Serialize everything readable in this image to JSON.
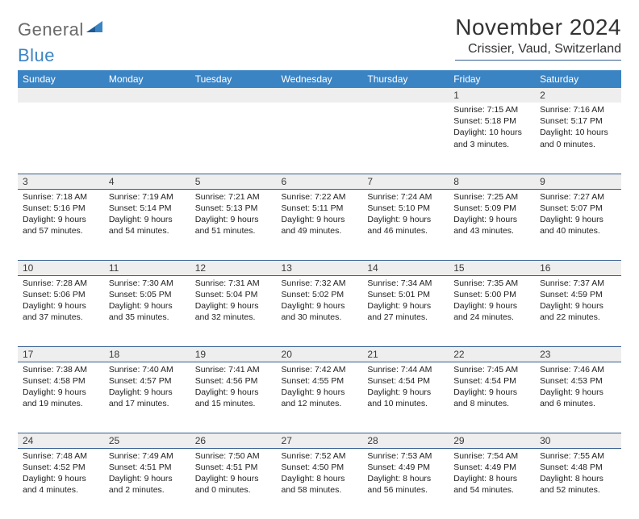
{
  "brand": {
    "part1": "General",
    "part2": "Blue"
  },
  "title": "November 2024",
  "location": "Crissier, Vaud, Switzerland",
  "colors": {
    "header_bg": "#3b84c4",
    "rule": "#365f91",
    "daynum_bg": "#eeeeee",
    "text": "#222222",
    "logo_gray": "#6a6a6a",
    "logo_blue": "#3b84c4"
  },
  "typography": {
    "title_fontsize": 28,
    "location_fontsize": 16,
    "weekday_fontsize": 12,
    "daynum_fontsize": 12,
    "body_fontsize": 10.5
  },
  "weekdays": [
    "Sunday",
    "Monday",
    "Tuesday",
    "Wednesday",
    "Thursday",
    "Friday",
    "Saturday"
  ],
  "weeks": [
    [
      null,
      null,
      null,
      null,
      null,
      {
        "n": "1",
        "sunrise": "7:15 AM",
        "sunset": "5:18 PM",
        "daylight": "10 hours and 3 minutes."
      },
      {
        "n": "2",
        "sunrise": "7:16 AM",
        "sunset": "5:17 PM",
        "daylight": "10 hours and 0 minutes."
      }
    ],
    [
      {
        "n": "3",
        "sunrise": "7:18 AM",
        "sunset": "5:16 PM",
        "daylight": "9 hours and 57 minutes."
      },
      {
        "n": "4",
        "sunrise": "7:19 AM",
        "sunset": "5:14 PM",
        "daylight": "9 hours and 54 minutes."
      },
      {
        "n": "5",
        "sunrise": "7:21 AM",
        "sunset": "5:13 PM",
        "daylight": "9 hours and 51 minutes."
      },
      {
        "n": "6",
        "sunrise": "7:22 AM",
        "sunset": "5:11 PM",
        "daylight": "9 hours and 49 minutes."
      },
      {
        "n": "7",
        "sunrise": "7:24 AM",
        "sunset": "5:10 PM",
        "daylight": "9 hours and 46 minutes."
      },
      {
        "n": "8",
        "sunrise": "7:25 AM",
        "sunset": "5:09 PM",
        "daylight": "9 hours and 43 minutes."
      },
      {
        "n": "9",
        "sunrise": "7:27 AM",
        "sunset": "5:07 PM",
        "daylight": "9 hours and 40 minutes."
      }
    ],
    [
      {
        "n": "10",
        "sunrise": "7:28 AM",
        "sunset": "5:06 PM",
        "daylight": "9 hours and 37 minutes."
      },
      {
        "n": "11",
        "sunrise": "7:30 AM",
        "sunset": "5:05 PM",
        "daylight": "9 hours and 35 minutes."
      },
      {
        "n": "12",
        "sunrise": "7:31 AM",
        "sunset": "5:04 PM",
        "daylight": "9 hours and 32 minutes."
      },
      {
        "n": "13",
        "sunrise": "7:32 AM",
        "sunset": "5:02 PM",
        "daylight": "9 hours and 30 minutes."
      },
      {
        "n": "14",
        "sunrise": "7:34 AM",
        "sunset": "5:01 PM",
        "daylight": "9 hours and 27 minutes."
      },
      {
        "n": "15",
        "sunrise": "7:35 AM",
        "sunset": "5:00 PM",
        "daylight": "9 hours and 24 minutes."
      },
      {
        "n": "16",
        "sunrise": "7:37 AM",
        "sunset": "4:59 PM",
        "daylight": "9 hours and 22 minutes."
      }
    ],
    [
      {
        "n": "17",
        "sunrise": "7:38 AM",
        "sunset": "4:58 PM",
        "daylight": "9 hours and 19 minutes."
      },
      {
        "n": "18",
        "sunrise": "7:40 AM",
        "sunset": "4:57 PM",
        "daylight": "9 hours and 17 minutes."
      },
      {
        "n": "19",
        "sunrise": "7:41 AM",
        "sunset": "4:56 PM",
        "daylight": "9 hours and 15 minutes."
      },
      {
        "n": "20",
        "sunrise": "7:42 AM",
        "sunset": "4:55 PM",
        "daylight": "9 hours and 12 minutes."
      },
      {
        "n": "21",
        "sunrise": "7:44 AM",
        "sunset": "4:54 PM",
        "daylight": "9 hours and 10 minutes."
      },
      {
        "n": "22",
        "sunrise": "7:45 AM",
        "sunset": "4:54 PM",
        "daylight": "9 hours and 8 minutes."
      },
      {
        "n": "23",
        "sunrise": "7:46 AM",
        "sunset": "4:53 PM",
        "daylight": "9 hours and 6 minutes."
      }
    ],
    [
      {
        "n": "24",
        "sunrise": "7:48 AM",
        "sunset": "4:52 PM",
        "daylight": "9 hours and 4 minutes."
      },
      {
        "n": "25",
        "sunrise": "7:49 AM",
        "sunset": "4:51 PM",
        "daylight": "9 hours and 2 minutes."
      },
      {
        "n": "26",
        "sunrise": "7:50 AM",
        "sunset": "4:51 PM",
        "daylight": "9 hours and 0 minutes."
      },
      {
        "n": "27",
        "sunrise": "7:52 AM",
        "sunset": "4:50 PM",
        "daylight": "8 hours and 58 minutes."
      },
      {
        "n": "28",
        "sunrise": "7:53 AM",
        "sunset": "4:49 PM",
        "daylight": "8 hours and 56 minutes."
      },
      {
        "n": "29",
        "sunrise": "7:54 AM",
        "sunset": "4:49 PM",
        "daylight": "8 hours and 54 minutes."
      },
      {
        "n": "30",
        "sunrise": "7:55 AM",
        "sunset": "4:48 PM",
        "daylight": "8 hours and 52 minutes."
      }
    ]
  ],
  "labels": {
    "sunrise": "Sunrise:",
    "sunset": "Sunset:",
    "daylight": "Daylight:"
  }
}
